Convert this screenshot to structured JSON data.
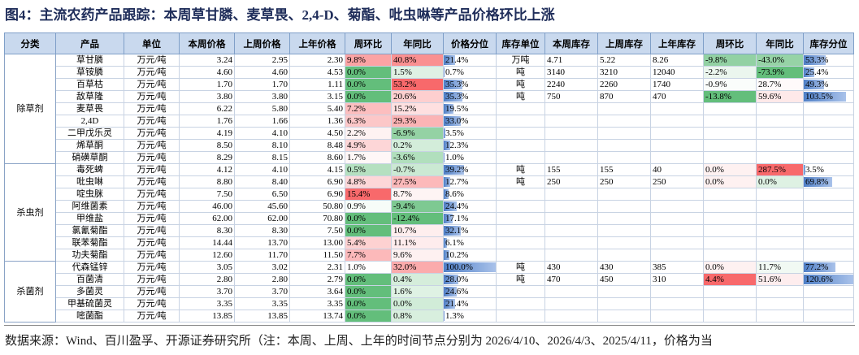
{
  "header": {
    "title": "图4：主流农药产品跟踪：本周草甘膦、麦草畏、2,4-D、菊酯、吡虫啉等产品价格环比上涨"
  },
  "table": {
    "columns": [
      "分类",
      "产品",
      "单位",
      "本周价格",
      "上周价格",
      "上年价格",
      "周环比",
      "年同比",
      "价格分位",
      "库存单位",
      "本周库存",
      "上周库存",
      "上年库存",
      "周环比",
      "年同比",
      "库存分位"
    ],
    "groups": [
      {
        "name": "除草剂",
        "rows": [
          [
            "草甘膦",
            "万元/吨",
            "3.24",
            "2.95",
            "2.30",
            "9.8%",
            "40.8%",
            "21.4%",
            "万吨",
            "4.71",
            "5.22",
            "8.26",
            "-9.8%",
            "-43.0%",
            "53.3%"
          ],
          [
            "草铵膦",
            "万元/吨",
            "4.60",
            "4.60",
            "4.53",
            "0.0%",
            "1.5%",
            "0.7%",
            "吨",
            "3140",
            "3210",
            "12040",
            "-2.2%",
            "-73.9%",
            "25.4%"
          ],
          [
            "百草枯",
            "万元/吨",
            "1.70",
            "1.70",
            "1.11",
            "0.0%",
            "53.2%",
            "35.3%",
            "吨",
            "2240",
            "2260",
            "1740",
            "-0.9%",
            "28.7%",
            "49.3%"
          ],
          [
            "敌草隆",
            "万元/吨",
            "3.80",
            "3.80",
            "3.15",
            "0.0%",
            "20.6%",
            "35.3%",
            "吨",
            "750",
            "870",
            "470",
            "-13.8%",
            "59.6%",
            "103.5%"
          ],
          [
            "麦草畏",
            "万元/吨",
            "6.22",
            "5.80",
            "5.40",
            "7.2%",
            "15.2%",
            "19.5%"
          ],
          [
            "2,4D",
            "万元/吨",
            "1.76",
            "1.66",
            "1.36",
            "6.3%",
            "29.3%",
            "33.0%"
          ],
          [
            "二甲戊乐灵",
            "万元/吨",
            "4.19",
            "4.10",
            "4.50",
            "2.2%",
            "-6.9%",
            "3.5%"
          ],
          [
            "烯草酮",
            "万元/吨",
            "8.50",
            "8.10",
            "8.48",
            "4.9%",
            "0.2%",
            "12.3%"
          ],
          [
            "硝磺草酮",
            "万元/吨",
            "8.29",
            "8.15",
            "8.60",
            "1.7%",
            "-3.6%",
            "1.0%"
          ]
        ]
      },
      {
        "name": "杀虫剂",
        "rows": [
          [
            "毒死蜱",
            "万元/吨",
            "4.12",
            "4.10",
            "4.15",
            "0.5%",
            "-0.7%",
            "39.2%",
            "吨",
            "155",
            "155",
            "40",
            "0.0%",
            "287.5%",
            "3.5%"
          ],
          [
            "吡虫啉",
            "万元/吨",
            "8.80",
            "8.40",
            "6.90",
            "4.8%",
            "27.5%",
            "12.7%",
            "吨",
            "250",
            "250",
            "250",
            "0.0%",
            "0.0%",
            "69.8%"
          ],
          [
            "啶虫脒",
            "万元/吨",
            "7.50",
            "6.50",
            "6.90",
            "15.4%",
            "8.7%",
            "8.6%"
          ],
          [
            "阿维菌素",
            "万元/吨",
            "46.00",
            "45.60",
            "50.80",
            "0.9%",
            "-9.4%",
            "24.4%"
          ],
          [
            "甲维盐",
            "万元/吨",
            "62.00",
            "62.00",
            "70.80",
            "0.0%",
            "-12.4%",
            "17.1%"
          ],
          [
            "氯氰菊酯",
            "万元/吨",
            "8.30",
            "8.30",
            "7.50",
            "0.0%",
            "10.7%",
            "32.1%"
          ],
          [
            "联苯菊酯",
            "万元/吨",
            "14.44",
            "13.70",
            "13.00",
            "5.4%",
            "11.1%",
            "6.1%"
          ],
          [
            "功夫菊酯",
            "万元/吨",
            "12.60",
            "11.70",
            "11.50",
            "7.7%",
            "9.6%",
            "10.2%"
          ]
        ]
      },
      {
        "name": "杀菌剂",
        "rows": [
          [
            "代森锰锌",
            "万元/吨",
            "3.05",
            "3.02",
            "2.31",
            "1.0%",
            "32.0%",
            "100.0%",
            "吨",
            "430",
            "430",
            "385",
            "0.0%",
            "11.7%",
            "77.2%"
          ],
          [
            "百菌清",
            "万元/吨",
            "2.80",
            "2.80",
            "2.79",
            "0.0%",
            "0.4%",
            "28.0%",
            "吨",
            "470",
            "450",
            "310",
            "4.4%",
            "51.6%",
            "120.6%"
          ],
          [
            "多菌灵",
            "万元/吨",
            "3.70",
            "3.70",
            "3.64",
            "0.0%",
            "1.6%",
            "24.6%"
          ],
          [
            "甲基硫菌灵",
            "万元/吨",
            "3.35",
            "3.35",
            "3.35",
            "0.0%",
            "0.0%",
            "21.4%"
          ],
          [
            "嘧菌酯",
            "万元/吨",
            "13.85",
            "13.85",
            "13.74",
            "0.0%",
            "0.8%",
            "1.3%"
          ]
        ]
      }
    ]
  },
  "footer": {
    "source": "数据来源：Wind、百川盈孚、开源证券研究所（注：本周、上周、上年的时间节点分别为 2026/4/10、2026/4/3、2025/4/11，价格为当"
  }
}
